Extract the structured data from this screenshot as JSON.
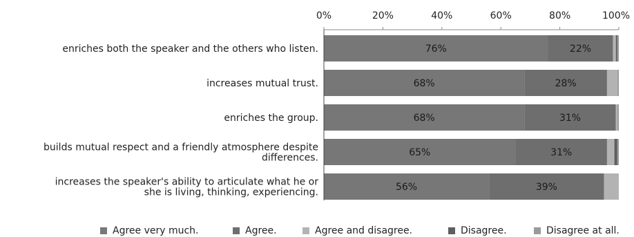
{
  "chart_data": {
    "type": "bar",
    "orientation": "horizontal",
    "stacked": "percent",
    "title": "",
    "xlabel": "",
    "ylabel": "",
    "xlim": [
      0,
      100
    ],
    "x_ticks": [
      "0%",
      "20%",
      "40%",
      "60%",
      "80%",
      "100%"
    ],
    "grid": false,
    "legend_position": "bottom",
    "categories": [
      [
        "enriches both the speaker and the others who listen."
      ],
      [
        "increases mutual trust."
      ],
      [
        "enriches the group."
      ],
      [
        "builds mutual respect and a friendly atmosphere despite",
        "differences."
      ],
      [
        "increases the speaker's ability to articulate what he or",
        "she is living, thinking, experiencing."
      ]
    ],
    "series": [
      {
        "name": "Agree very much.",
        "color": "#777777",
        "values": [
          76,
          68,
          68,
          65,
          56
        ]
      },
      {
        "name": "Agree.",
        "color": "#6e6e6e",
        "values": [
          22,
          28,
          31,
          31,
          39
        ]
      },
      {
        "name": "Agree and disagree.",
        "color": "#b3b3b3",
        "values": [
          1,
          3.5,
          0.5,
          2.5,
          5
        ]
      },
      {
        "name": "Disagree.",
        "color": "#5f5f5f",
        "values": [
          0.5,
          0,
          0,
          1,
          0
        ]
      },
      {
        "name": "Disagree at all.",
        "color": "#9a9a9a",
        "values": [
          0.5,
          0.5,
          0.5,
          0.5,
          0
        ]
      }
    ],
    "data_labels": [
      [
        "76%",
        "22%"
      ],
      [
        "68%",
        "28%"
      ],
      [
        "68%",
        "31%"
      ],
      [
        "65%",
        "31%"
      ],
      [
        "56%",
        "39%"
      ]
    ]
  }
}
